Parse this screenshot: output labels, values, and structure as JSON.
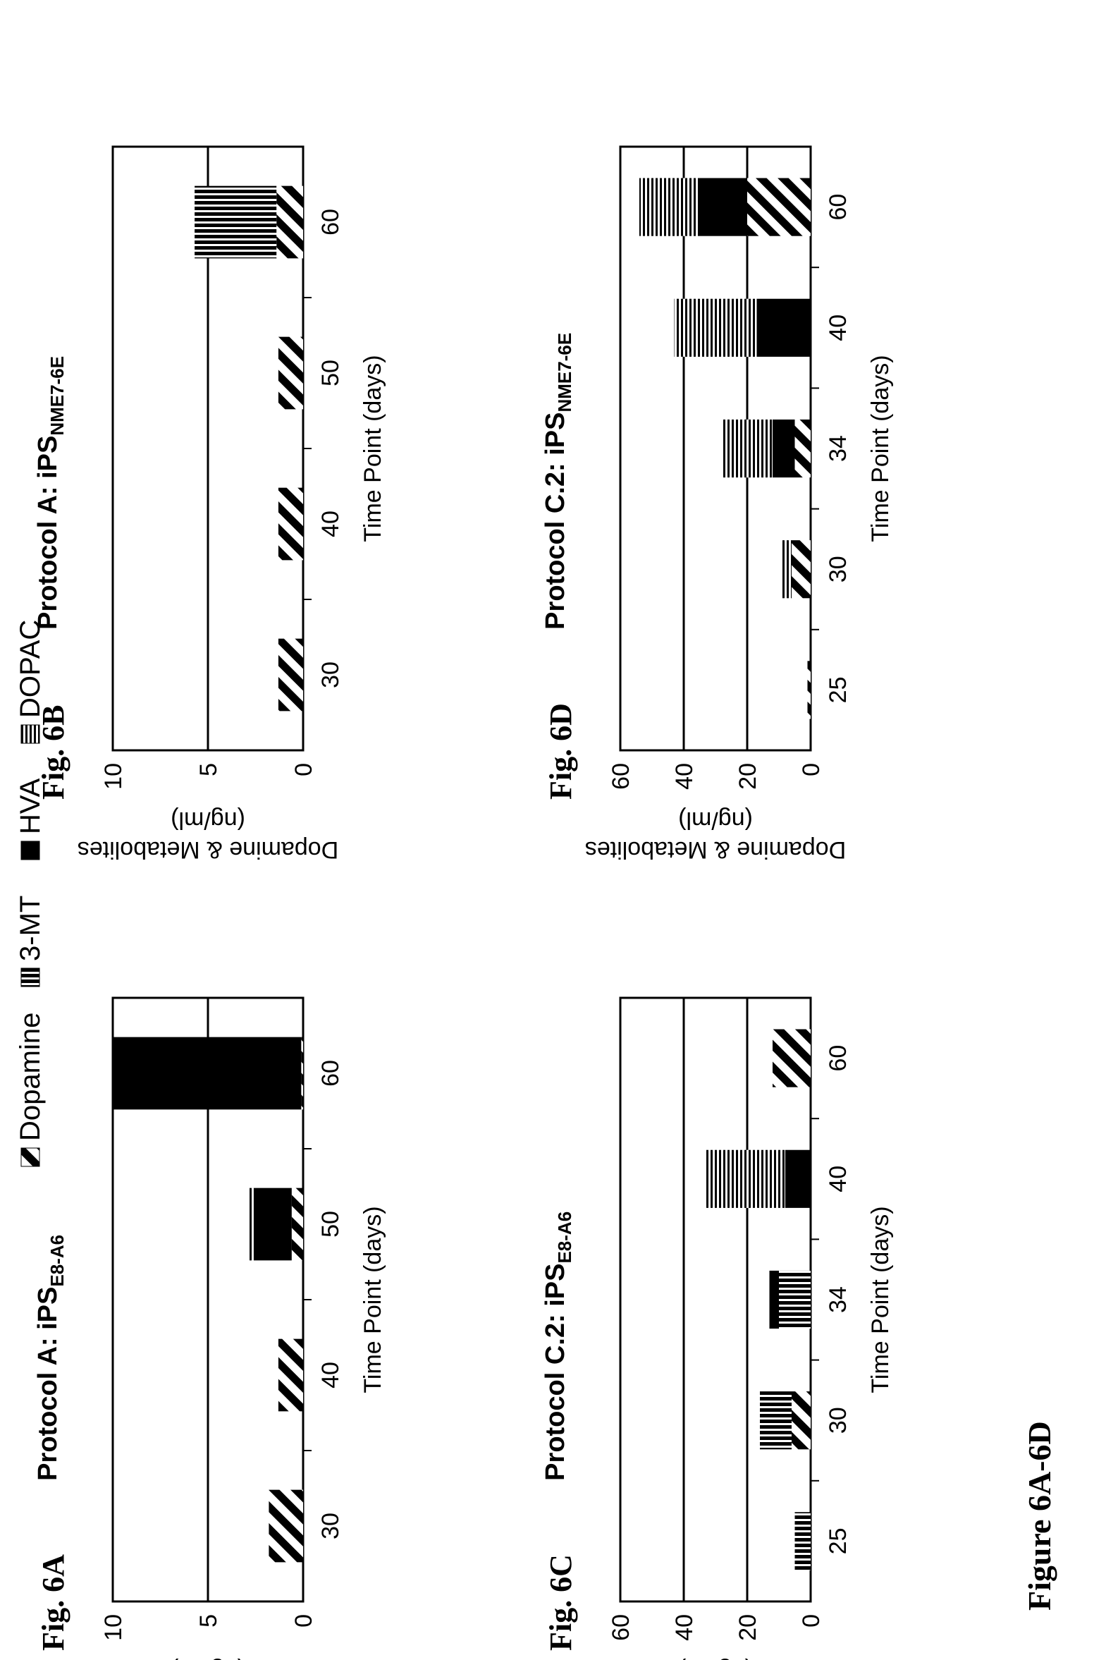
{
  "figure_caption": "Figure 6A-6D",
  "legend": {
    "items": [
      {
        "name": "Dopamine",
        "pattern": "diag"
      },
      {
        "name": "3-MT",
        "pattern": "vstripe"
      },
      {
        "name": "HVA",
        "pattern": "solid"
      },
      {
        "name": "DOPAC",
        "pattern": "hstripe"
      }
    ]
  },
  "colors": {
    "ink": "#000000",
    "background": "#ffffff"
  },
  "chart_data": [
    {
      "panel": "Fig. 6A",
      "type": "bar",
      "stacked": true,
      "title": "Protocol A: iPS",
      "title_sub": "E8-A6",
      "xlabel": "Time Point (days)",
      "ylabel": "Dopamine & Metabolites",
      "ylabel2": "(ng/ml)",
      "categories": [
        "30",
        "40",
        "50",
        "60"
      ],
      "ylim": [
        0,
        10
      ],
      "yticks": [
        "0",
        "5",
        "10"
      ],
      "gridlines": [
        5
      ],
      "series": [
        {
          "name": "Dopamine",
          "values": [
            1.8,
            1.3,
            0.6,
            0.1
          ]
        },
        {
          "name": "3-MT",
          "values": [
            0,
            0,
            0,
            0
          ]
        },
        {
          "name": "HVA",
          "values": [
            0,
            0,
            2.0,
            10.0
          ]
        },
        {
          "name": "DOPAC",
          "values": [
            0,
            0,
            0.3,
            0.3
          ]
        }
      ]
    },
    {
      "panel": "Fig. 6B",
      "type": "bar",
      "stacked": true,
      "title": "Protocol A: iPS",
      "title_sub": "NME7-6E",
      "xlabel": "Time Point (days)",
      "ylabel": "Dopamine & Metabolites",
      "ylabel2": "(ng/ml)",
      "categories": [
        "30",
        "40",
        "50",
        "60"
      ],
      "ylim": [
        0,
        10
      ],
      "yticks": [
        "0",
        "5",
        "10"
      ],
      "gridlines": [
        5
      ],
      "series": [
        {
          "name": "Dopamine",
          "values": [
            1.3,
            1.3,
            1.3,
            1.4
          ]
        },
        {
          "name": "3-MT",
          "values": [
            0,
            0,
            0,
            4.3
          ]
        },
        {
          "name": "HVA",
          "values": [
            0,
            0,
            0,
            0
          ]
        },
        {
          "name": "DOPAC",
          "values": [
            0,
            0,
            0,
            0
          ]
        }
      ]
    },
    {
      "panel": "Fig. 6C",
      "type": "bar",
      "stacked": true,
      "title": "Protocol C.2: iPS",
      "title_sub": "E8-A6",
      "xlabel": "Time Point (days)",
      "ylabel": "Dopamine & Metabolites",
      "ylabel2": "(ng/ml)",
      "categories": [
        "25",
        "30",
        "34",
        "40",
        "60"
      ],
      "ylim": [
        0,
        60
      ],
      "yticks": [
        "0",
        "20",
        "40",
        "60"
      ],
      "gridlines": [
        20,
        40
      ],
      "series": [
        {
          "name": "Dopamine",
          "values": [
            0,
            6,
            0,
            0,
            12
          ]
        },
        {
          "name": "3-MT",
          "values": [
            5,
            10,
            10,
            0,
            0
          ]
        },
        {
          "name": "HVA",
          "values": [
            0,
            0,
            3,
            8,
            0
          ]
        },
        {
          "name": "DOPAC",
          "values": [
            0,
            0,
            0,
            25,
            0
          ]
        }
      ]
    },
    {
      "panel": "Fig. 6D",
      "type": "bar",
      "stacked": true,
      "title": "Protocol C.2: iPS",
      "title_sub": "NME7-6E",
      "xlabel": "Time Point (days)",
      "ylabel": "Dopamine & Metabolites",
      "ylabel2": "(ng/ml)",
      "categories": [
        "25",
        "30",
        "34",
        "40",
        "60"
      ],
      "ylim": [
        0,
        60
      ],
      "yticks": [
        "0",
        "20",
        "40",
        "60"
      ],
      "gridlines": [
        20,
        40
      ],
      "series": [
        {
          "name": "Dopamine",
          "values": [
            1,
            6,
            5,
            0,
            20
          ]
        },
        {
          "name": "3-MT",
          "values": [
            0,
            0,
            0,
            0,
            0
          ]
        },
        {
          "name": "HVA",
          "values": [
            0,
            0,
            7,
            17,
            15
          ]
        },
        {
          "name": "DOPAC",
          "values": [
            0,
            3,
            16,
            26,
            19
          ]
        }
      ]
    }
  ]
}
